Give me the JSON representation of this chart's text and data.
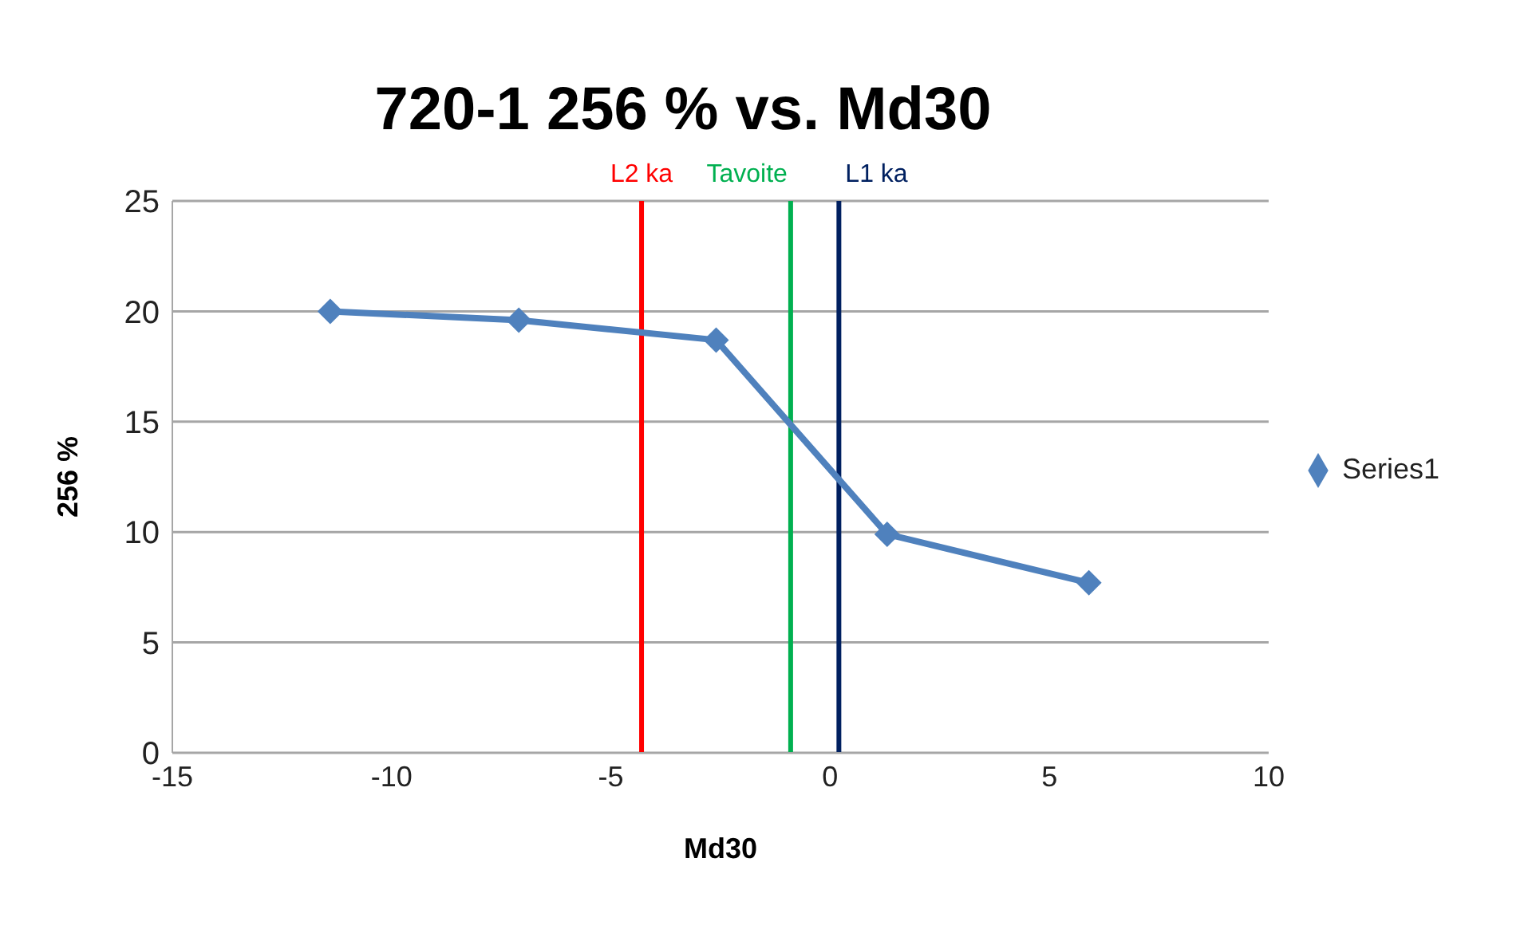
{
  "chart_data": {
    "type": "line",
    "title": "720-1 256 % vs. Md30",
    "xlabel": "Md30",
    "ylabel": "256 %",
    "x": [
      -11.4,
      -7.1,
      -2.6,
      1.3,
      5.9
    ],
    "series": [
      {
        "name": "Series1",
        "color": "#4f81bd",
        "values": [
          20,
          19.6,
          18.7,
          9.9,
          7.7
        ]
      }
    ],
    "xlim": [
      -15,
      10
    ],
    "xticks": [
      -15,
      -10,
      -5,
      0,
      5,
      10
    ],
    "ylim": [
      0,
      25
    ],
    "yticks": [
      0,
      5,
      10,
      15,
      20,
      25
    ],
    "grid": "y",
    "legend": "right",
    "marker": "diamond",
    "line_style": "solid",
    "ref_lines": [
      {
        "axis": "x",
        "value": -4.3,
        "label": "L2 ka",
        "color": "#ff0000"
      },
      {
        "axis": "x",
        "value": -0.9,
        "label": "Tavoite",
        "color": "#00b050"
      },
      {
        "axis": "x",
        "value": 0.2,
        "label": "L1 ka",
        "color": "#002060"
      }
    ]
  }
}
